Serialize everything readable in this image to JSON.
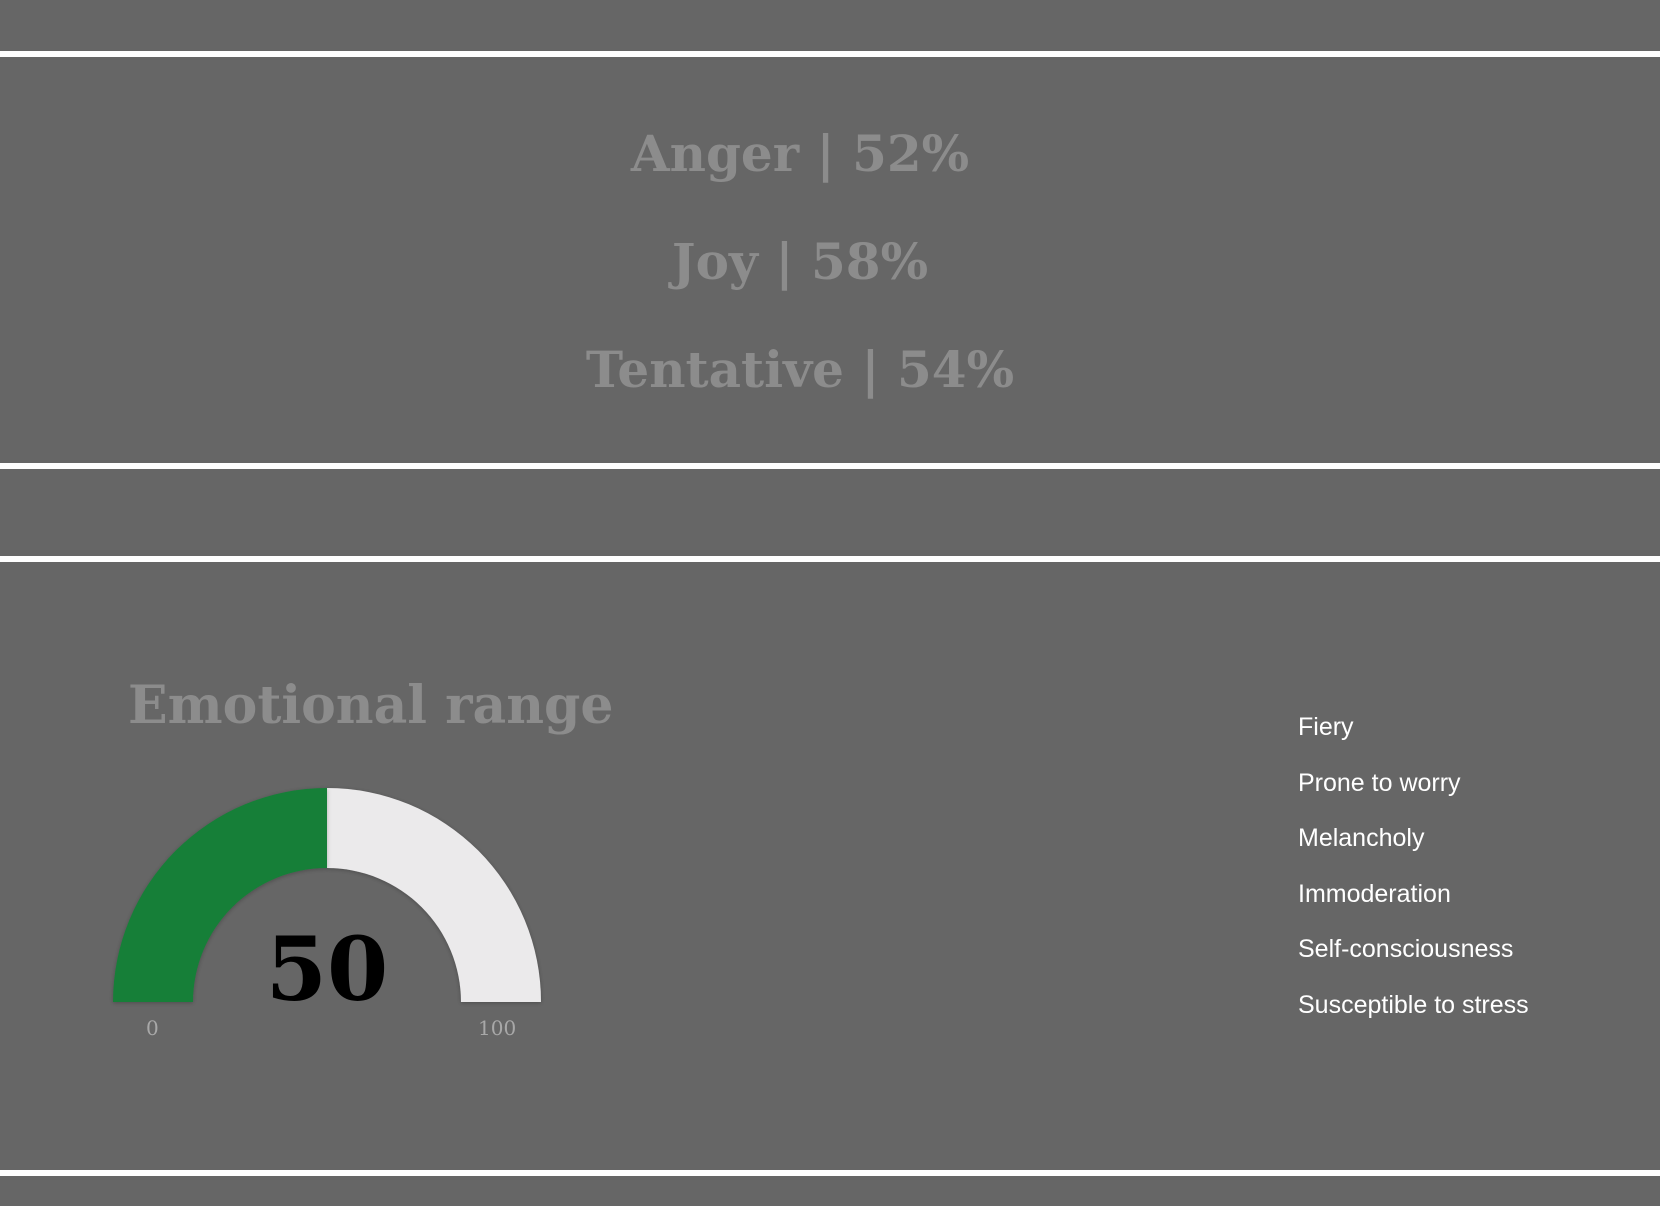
{
  "tone_summary": {
    "items": [
      {
        "label": "Anger | 52%"
      },
      {
        "label": "Joy | 58%"
      },
      {
        "label": "Tentative | 54%"
      }
    ]
  },
  "emotional_range": {
    "title": "Emotional range",
    "value": 50,
    "value_label": "50",
    "min_label": "0",
    "max_label": "100",
    "fill_color": "#177f38",
    "track_color": "#ebeaeb"
  },
  "traits": {
    "items": [
      {
        "label": "Fiery"
      },
      {
        "label": "Prone to worry"
      },
      {
        "label": "Melancholy"
      },
      {
        "label": "Immoderation"
      },
      {
        "label": "Self-consciousness"
      },
      {
        "label": "Susceptible to stress"
      }
    ]
  },
  "colors": {
    "background": "#666666",
    "divider": "#ffffff",
    "muted_heading": "#8c8c8c",
    "trait_text": "#ffffff"
  }
}
